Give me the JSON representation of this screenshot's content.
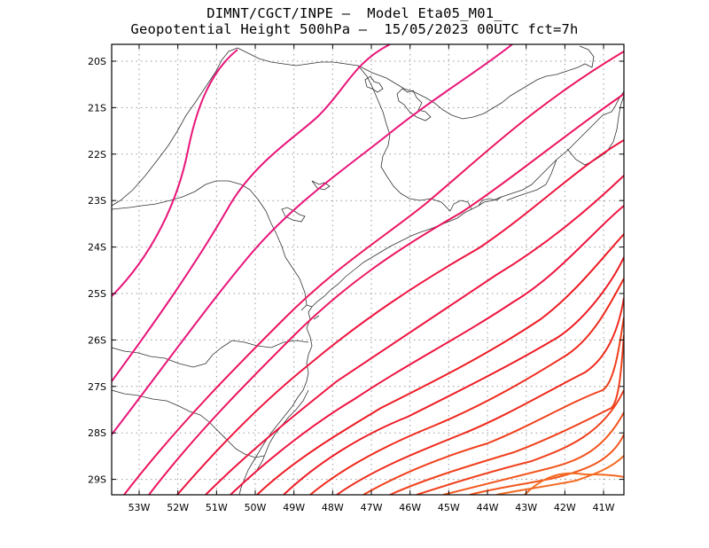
{
  "title": {
    "line1": "DIMNT/CGCT/INPE –  Model Eta05_M01_",
    "line2": "Geopotential Height 500hPa –  15/05/2023 00UTC fct=7h"
  },
  "axes": {
    "lon_labels": [
      "53W",
      "52W",
      "51W",
      "50W",
      "49W",
      "48W",
      "47W",
      "46W",
      "45W",
      "44W",
      "43W",
      "42W",
      "41W"
    ],
    "lat_labels": [
      "20S",
      "21S",
      "22S",
      "23S",
      "24S",
      "25S",
      "26S",
      "27S",
      "28S",
      "29S"
    ]
  },
  "colors": {
    "frame": "#000000",
    "grid": "#9a9a9a",
    "coast": "#333333",
    "contour_ramp": [
      "#e8157a",
      "#ec1360",
      "#ee1440",
      "#ee1c24",
      "#ef2a1c",
      "#f0401c",
      "#f2561e",
      "#f46a22"
    ]
  }
}
